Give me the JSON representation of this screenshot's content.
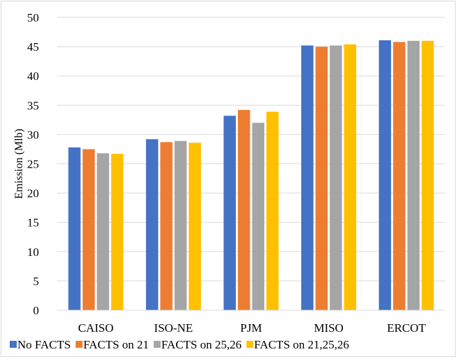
{
  "chart_data": {
    "type": "bar",
    "title": "",
    "xlabel": "",
    "ylabel": "Emission (Mlb)",
    "ylim": [
      0,
      50
    ],
    "ytick_step": 5,
    "grid": true,
    "legend_position": "bottom",
    "categories": [
      "CAISO",
      "ISO-NE",
      "PJM",
      "MISO",
      "ERCOT"
    ],
    "series": [
      {
        "name": "No FACTS",
        "color": "#4472c4",
        "values": [
          27.8,
          29.2,
          33.2,
          45.2,
          46.1
        ]
      },
      {
        "name": "FACTS on 21",
        "color": "#ed7d31",
        "values": [
          27.5,
          28.7,
          34.2,
          45.0,
          45.8
        ]
      },
      {
        "name": "FACTS on 25,26",
        "color": "#a5a5a5",
        "values": [
          26.8,
          28.9,
          32.0,
          45.2,
          46.0
        ]
      },
      {
        "name": "FACTS on 21,25,26",
        "color": "#ffc000",
        "values": [
          26.7,
          28.6,
          33.9,
          45.4,
          46.0
        ]
      }
    ]
  }
}
